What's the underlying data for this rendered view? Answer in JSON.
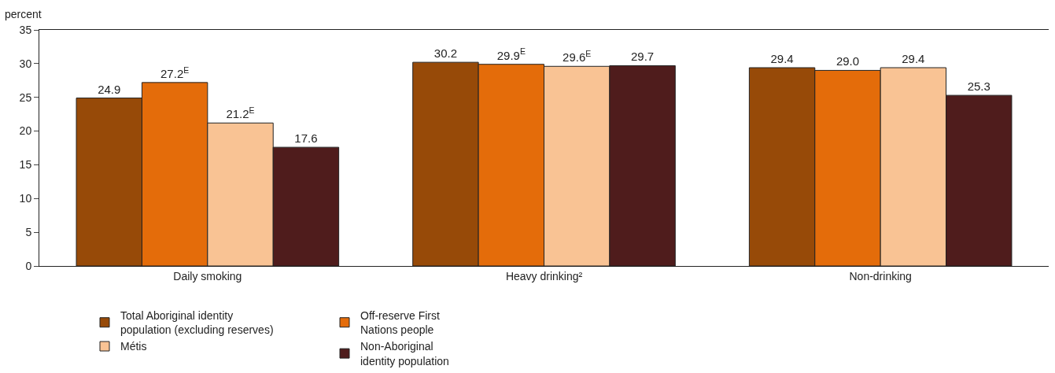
{
  "chart_data": {
    "type": "bar",
    "ylabel": "percent",
    "categories": [
      "Daily smoking",
      "Heavy drinking²",
      "Non-drinking"
    ],
    "series": [
      {
        "name": "Total Aboriginal identity population (excluding reserves)",
        "color": "#974a08",
        "values": [
          24.9,
          30.2,
          29.4
        ],
        "value_labels": [
          "24.9",
          "30.2",
          "29.4"
        ]
      },
      {
        "name": "Off-reserve First Nations people",
        "color": "#e46c0a",
        "values": [
          27.2,
          29.9,
          29.0
        ],
        "value_labels": [
          "27.2$^{E}$",
          "29.9$^{E}$",
          "29.0"
        ]
      },
      {
        "name": "Métis",
        "color": "#f9c394",
        "values": [
          21.2,
          29.6,
          29.4
        ],
        "value_labels": [
          "21.2$^{E}$",
          "29.6$^{E}$",
          "29.4"
        ]
      },
      {
        "name": "Non-Aboriginal identity population",
        "color": "#4f1c1c",
        "values": [
          17.6,
          29.7,
          25.3
        ],
        "value_labels": [
          "17.6",
          "29.7",
          "25.3"
        ]
      }
    ],
    "ylim": [
      0,
      35
    ],
    "yticks": [
      0,
      5,
      10,
      15,
      20,
      25,
      30,
      35
    ],
    "grid": false,
    "legend": "bottom"
  }
}
